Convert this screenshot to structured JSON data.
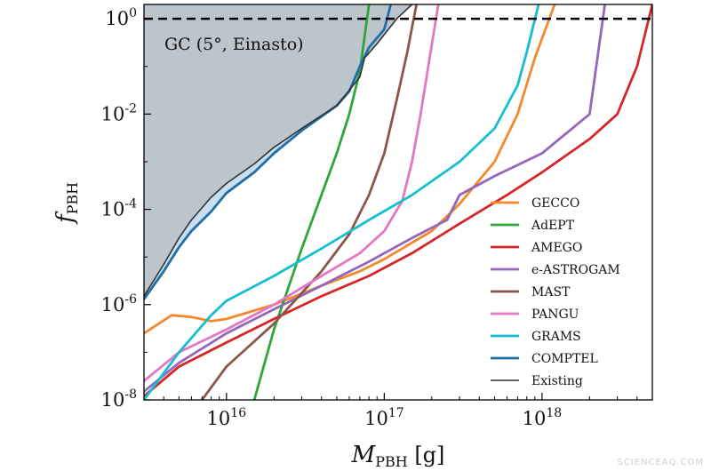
{
  "chart_data": {
    "type": "line",
    "xlabel_main": "M",
    "xlabel_sub": "PBH",
    "xlabel_unit": " [g]",
    "ylabel_main": "f",
    "ylabel_sub": "PBH",
    "xscale": "log",
    "yscale": "log",
    "xlim": [
      3000000000000000.0,
      5e+18
    ],
    "ylim": [
      1e-08,
      2
    ],
    "x_ticks": [
      {
        "value": 1e+16,
        "base": "10",
        "exp": "16"
      },
      {
        "value": 1e+17,
        "base": "10",
        "exp": "17"
      },
      {
        "value": 1e+18,
        "base": "10",
        "exp": "18"
      }
    ],
    "y_ticks": [
      {
        "value": 1e-08,
        "base": "10",
        "exp": "-8"
      },
      {
        "value": 1e-06,
        "base": "10",
        "exp": "-6"
      },
      {
        "value": 0.0001,
        "base": "10",
        "exp": "-4"
      },
      {
        "value": 0.01,
        "base": "10",
        "exp": "-2"
      },
      {
        "value": 1,
        "base": "10",
        "exp": "0"
      }
    ],
    "annotation": "GC (5°, Einasto)",
    "reference_line": {
      "y": 1,
      "style": "dashed",
      "color": "#000000"
    },
    "legend_position": "lower-right",
    "excluded_region": {
      "name": "Existing",
      "color": "#bcc5cc",
      "edge_color": "#333333",
      "points": [
        [
          3000000000000000.0,
          1.5e-06
        ],
        [
          4000000000000000.0,
          7e-06
        ],
        [
          5000000000000000.0,
          2.5e-05
        ],
        [
          6000000000000000.0,
          6e-05
        ],
        [
          8000000000000000.0,
          0.00018
        ],
        [
          1e+16,
          0.00035
        ],
        [
          1.5e+16,
          0.0009
        ],
        [
          2e+16,
          0.002
        ],
        [
          3e+16,
          0.005
        ],
        [
          5e+16,
          0.015
        ],
        [
          7e+16,
          0.06
        ],
        [
          7.5e+16,
          0.15
        ],
        [
          9e+16,
          0.3
        ],
        [
          1.2e+17,
          1
        ],
        [
          1.5e+17,
          2
        ]
      ]
    },
    "comptel_band": {
      "color": "#c9dff0",
      "upper": [
        [
          3000000000000000.0,
          1.5e-06
        ],
        [
          4000000000000000.0,
          7e-06
        ],
        [
          5000000000000000.0,
          2.5e-05
        ],
        [
          6000000000000000.0,
          6e-05
        ],
        [
          8000000000000000.0,
          0.00018
        ],
        [
          1e+16,
          0.00035
        ],
        [
          1.5e+16,
          0.0009
        ],
        [
          2e+16,
          0.002
        ],
        [
          3e+16,
          0.005
        ]
      ],
      "lower": [
        [
          3000000000000000.0,
          1.3e-06
        ],
        [
          4000000000000000.0,
          5e-06
        ],
        [
          5000000000000000.0,
          1.6e-05
        ],
        [
          6000000000000000.0,
          3.5e-05
        ],
        [
          8000000000000000.0,
          9e-05
        ],
        [
          1e+16,
          0.00022
        ],
        [
          1.5e+16,
          0.0006
        ],
        [
          2e+16,
          0.0015
        ],
        [
          3e+16,
          0.0045
        ]
      ]
    },
    "series": [
      {
        "name": "GECCO",
        "color": "#f5882a",
        "points": [
          [
            3000000000000000.0,
            2.5e-07
          ],
          [
            4500000000000000.0,
            6e-07
          ],
          [
            6000000000000000.0,
            5.5e-07
          ],
          [
            8000000000000000.0,
            4.5e-07
          ],
          [
            1e+16,
            5e-07
          ],
          [
            2e+16,
            1e-06
          ],
          [
            4e+16,
            2.5e-06
          ],
          [
            7e+16,
            5e-06
          ],
          [
            1e+17,
            9e-06
          ],
          [
            2e+17,
            3.5e-05
          ],
          [
            3e+17,
            0.00013
          ],
          [
            5e+17,
            0.001
          ],
          [
            7e+17,
            0.01
          ],
          [
            9e+17,
            0.15
          ],
          [
            1.2e+18,
            2
          ]
        ]
      },
      {
        "name": "AdEPT",
        "color": "#2fa638",
        "points": [
          [
            1.5e+16,
            1e-08
          ],
          [
            2e+16,
            3e-07
          ],
          [
            3e+16,
            1.5e-05
          ],
          [
            4e+16,
            0.0002
          ],
          [
            5e+16,
            0.0015
          ],
          [
            6e+16,
            0.01
          ],
          [
            7e+16,
            0.08
          ],
          [
            8e+16,
            2
          ]
        ]
      },
      {
        "name": "AMEGO",
        "color": "#d62728",
        "points": [
          [
            3000000000000000.0,
            1.2e-08
          ],
          [
            5000000000000000.0,
            5e-08
          ],
          [
            1e+16,
            1.6e-07
          ],
          [
            2e+16,
            5e-07
          ],
          [
            4e+16,
            1.5e-06
          ],
          [
            8e+16,
            4e-06
          ],
          [
            1.5e+17,
            1.2e-05
          ],
          [
            3e+17,
            5e-05
          ],
          [
            6e+17,
            0.0002
          ],
          [
            1e+18,
            0.0006
          ],
          [
            2e+18,
            0.003
          ],
          [
            3e+18,
            0.01
          ],
          [
            4e+18,
            0.1
          ],
          [
            5e+18,
            2
          ]
        ]
      },
      {
        "name": "e-ASTROGAM",
        "color": "#9467bd",
        "points": [
          [
            3000000000000000.0,
            1.5e-08
          ],
          [
            5000000000000000.0,
            6e-08
          ],
          [
            1e+16,
            2.5e-07
          ],
          [
            2e+16,
            8e-07
          ],
          [
            4e+16,
            2.5e-06
          ],
          [
            8e+16,
            8e-06
          ],
          [
            1.5e+17,
            2.5e-05
          ],
          [
            2.5e+17,
            6e-05
          ],
          [
            3e+17,
            0.0002
          ],
          [
            5e+17,
            0.0005
          ],
          [
            1e+18,
            0.0015
          ],
          [
            2e+18,
            0.01
          ],
          [
            2.5e+18,
            2
          ]
        ]
      },
      {
        "name": "MAST",
        "color": "#8c564b",
        "points": [
          [
            7000000000000000.0,
            1e-08
          ],
          [
            1e+16,
            5e-08
          ],
          [
            2e+16,
            4e-07
          ],
          [
            4e+16,
            5e-06
          ],
          [
            6e+16,
            3e-05
          ],
          [
            8e+16,
            0.0002
          ],
          [
            1e+17,
            0.0015
          ],
          [
            1.2e+17,
            0.02
          ],
          [
            1.4e+17,
            0.2
          ],
          [
            1.6e+17,
            2
          ]
        ]
      },
      {
        "name": "PANGU",
        "color": "#e377c2",
        "points": [
          [
            3000000000000000.0,
            2.5e-08
          ],
          [
            5000000000000000.0,
            1e-07
          ],
          [
            1e+16,
            3e-07
          ],
          [
            2e+16,
            1e-06
          ],
          [
            4e+16,
            4e-06
          ],
          [
            7e+16,
            1.2e-05
          ],
          [
            1e+17,
            3.5e-05
          ],
          [
            1.3e+17,
            0.00015
          ],
          [
            1.5e+17,
            0.001
          ],
          [
            1.7e+17,
            0.01
          ],
          [
            1.9e+17,
            0.1
          ],
          [
            2.2e+17,
            2
          ]
        ]
      },
      {
        "name": "GRAMS",
        "color": "#17becf",
        "points": [
          [
            3000000000000000.0,
            1e-08
          ],
          [
            5000000000000000.0,
            1e-07
          ],
          [
            8000000000000000.0,
            6e-07
          ],
          [
            1e+16,
            1.2e-06
          ],
          [
            2e+16,
            4e-06
          ],
          [
            4e+16,
            1.5e-05
          ],
          [
            8e+16,
            6e-05
          ],
          [
            1.5e+17,
            0.0002
          ],
          [
            3e+17,
            0.001
          ],
          [
            5e+17,
            0.005
          ],
          [
            7e+17,
            0.04
          ],
          [
            8e+17,
            0.2
          ],
          [
            9.5e+17,
            2
          ]
        ]
      },
      {
        "name": "COMPTEL",
        "color": "#1f6fa8",
        "points": [
          [
            3000000000000000.0,
            1.3e-06
          ],
          [
            4000000000000000.0,
            5e-06
          ],
          [
            5000000000000000.0,
            1.6e-05
          ],
          [
            6000000000000000.0,
            3.5e-05
          ],
          [
            8000000000000000.0,
            9e-05
          ],
          [
            1e+16,
            0.00022
          ],
          [
            1.5e+16,
            0.0006
          ],
          [
            2e+16,
            0.0015
          ],
          [
            3e+16,
            0.0045
          ],
          [
            5e+16,
            0.015
          ],
          [
            6e+16,
            0.03
          ],
          [
            7e+16,
            0.1
          ],
          [
            8e+16,
            0.25
          ],
          [
            1e+17,
            0.6
          ],
          [
            1.1e+17,
            2
          ]
        ]
      },
      {
        "name": "Existing",
        "color": "#333333",
        "points": [
          [
            3000000000000000.0,
            1.5e-06
          ],
          [
            4000000000000000.0,
            7e-06
          ],
          [
            5000000000000000.0,
            2.5e-05
          ],
          [
            6000000000000000.0,
            6e-05
          ],
          [
            8000000000000000.0,
            0.00018
          ],
          [
            1e+16,
            0.00035
          ],
          [
            1.5e+16,
            0.0009
          ],
          [
            2e+16,
            0.002
          ],
          [
            3e+16,
            0.005
          ],
          [
            5e+16,
            0.015
          ],
          [
            7e+16,
            0.06
          ],
          [
            7.5e+16,
            0.15
          ],
          [
            9e+16,
            0.3
          ],
          [
            1.2e+17,
            1
          ],
          [
            1.5e+17,
            2
          ]
        ]
      }
    ]
  },
  "watermark": "SCIENCEAQ.COM"
}
